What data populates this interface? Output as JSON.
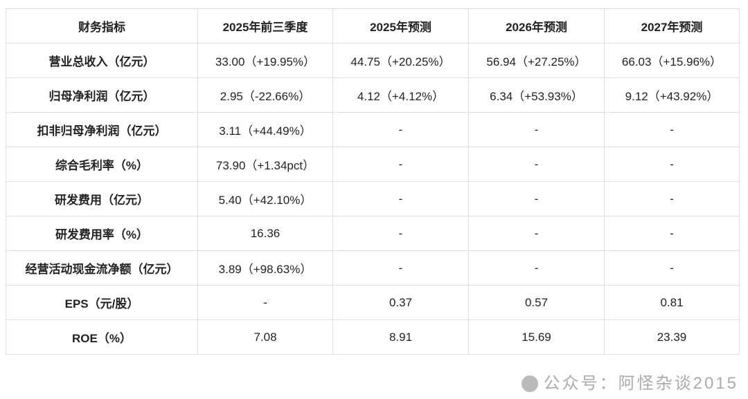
{
  "headers": [
    "财务指标",
    "2025年前三季度",
    "2025年预测",
    "2026年预测",
    "2027年预测"
  ],
  "rows": [
    [
      "营业总收入（亿元）",
      "33.00（+19.95%）",
      "44.75（+20.25%）",
      "56.94（+27.25%）",
      "66.03（+15.96%）"
    ],
    [
      "归母净利润（亿元）",
      "2.95（-22.66%）",
      "4.12（+4.12%）",
      "6.34（+53.93%）",
      "9.12（+43.92%）"
    ],
    [
      "扣非归母净利润（亿元）",
      "3.11（+44.49%）",
      "-",
      "-",
      "-"
    ],
    [
      "综合毛利率（%）",
      "73.90（+1.34pct）",
      "-",
      "-",
      "-"
    ],
    [
      "研发费用（亿元）",
      "5.40（+42.10%）",
      "-",
      "-",
      "-"
    ],
    [
      "研发费用率（%）",
      "16.36",
      "-",
      "-",
      "-"
    ],
    [
      "经营活动现金流净额（亿元）",
      "3.89（+98.63%）",
      "-",
      "-",
      "-"
    ],
    [
      "EPS（元/股）",
      "-",
      "0.37",
      "0.57",
      "0.81"
    ],
    [
      "ROE（%）",
      "7.08",
      "8.91",
      "15.69",
      "23.39"
    ]
  ],
  "watermark": "公众号：阿怪杂谈2015"
}
